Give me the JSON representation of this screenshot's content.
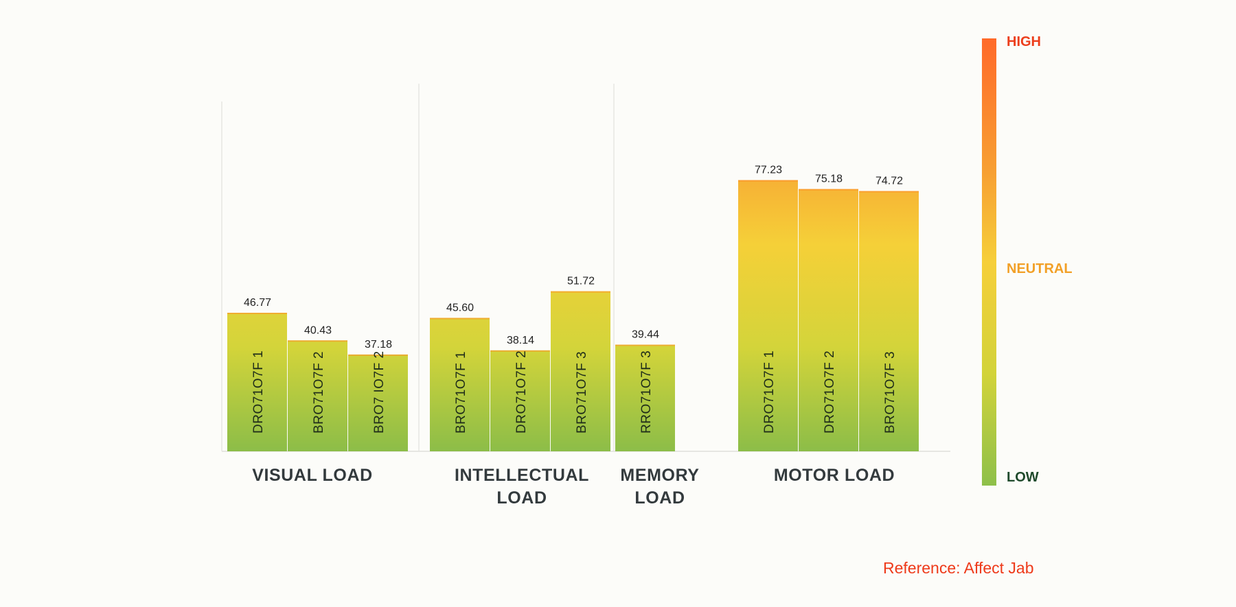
{
  "chart_data": {
    "type": "bar",
    "groups": [
      {
        "name": "VISUAL LOAD",
        "bars": [
          {
            "label": "DRO71O7F 1",
            "value": 46.77
          },
          {
            "label": "BRO71O7F 2",
            "value": 40.43
          },
          {
            "label": "BRO7 IO7F 2",
            "value": 37.18
          }
        ]
      },
      {
        "name": "INTELLECTUAL LOAD",
        "bars": [
          {
            "label": "BRO71O7F 1",
            "value": 45.6
          },
          {
            "label": "DRO71O7F 2",
            "value": 38.14
          },
          {
            "label": "BRO71O7F 3",
            "value": 51.72
          }
        ]
      },
      {
        "name": "MEMORY LOAD",
        "bars": [
          {
            "label": "RRO71O7F 3",
            "value": 39.44
          }
        ]
      },
      {
        "name": "MOTOR LOAD",
        "bars": [
          {
            "label": "DRO71O7F 1",
            "value": 77.23
          },
          {
            "label": "DRO71O7F 2",
            "value": 75.18
          },
          {
            "label": "BRO71O7F 3",
            "value": 74.72
          }
        ]
      }
    ],
    "color_scale": {
      "high": "HIGH",
      "neutral": "NEUTRAL",
      "low": "LOW",
      "high_color": "#ff6a2a",
      "neutral_color": "#f6cf3a",
      "low_color": "#8ec04a"
    },
    "ylim": [
      0,
      100
    ],
    "grid": false
  },
  "legend": {
    "high": "HIGH",
    "neutral": "NEUTRAL",
    "low": "LOW"
  },
  "reference": "Reference: Affect Jab"
}
